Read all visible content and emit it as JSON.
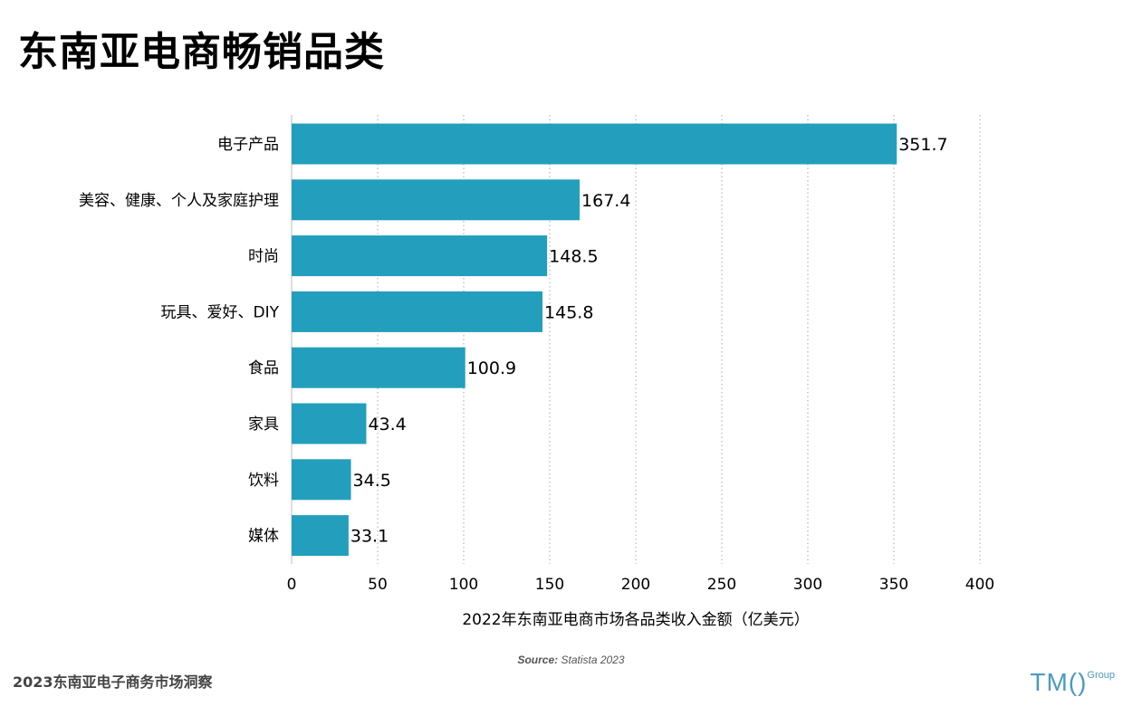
{
  "title": "东南亚电商畅销品类",
  "footer": "2023东南亚电子商务市场洞察",
  "source": {
    "label": "Source:",
    "text": "Statista 2023"
  },
  "logo": {
    "main": "TM()",
    "sub": "Group"
  },
  "colors": {
    "bar": "#239fbd",
    "grid": "#a8a8a8",
    "axis": "#bdbdbd"
  },
  "chart_data": {
    "type": "bar",
    "orientation": "horizontal",
    "categories": [
      "电子产品",
      "美容、健康、个人及家庭护理",
      "时尚",
      "玩具、爱好、DIY",
      "食品",
      "家具",
      "饮料",
      "媒体"
    ],
    "values": [
      351.7,
      167.4,
      148.5,
      145.8,
      100.9,
      43.4,
      34.5,
      33.1
    ],
    "data_labels": [
      "351.7",
      "167.4",
      "148.5",
      "145.8",
      "100.9",
      "43.4",
      "34.5",
      "33.1"
    ],
    "xlabel": "2022年东南亚电商市场各品类收入金额（亿美元）",
    "xlim": [
      0,
      400
    ],
    "xticks": [
      "0",
      "50",
      "100",
      "150",
      "200",
      "250",
      "300",
      "350",
      "400"
    ],
    "grid": "vertical-dotted"
  }
}
